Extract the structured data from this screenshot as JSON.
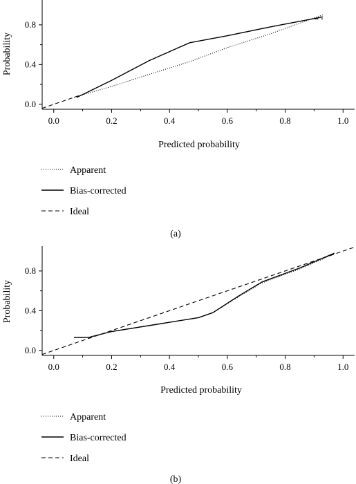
{
  "chart_data": [
    {
      "type": "line",
      "panel_label": "(a)",
      "xlabel": "Predicted probability",
      "ylabel": "Probability",
      "xlim": [
        -0.04,
        1.04
      ],
      "ylim": [
        -0.05,
        1.05
      ],
      "x_ticks": [
        "0.0",
        "0.2",
        "0.4",
        "0.6",
        "0.8",
        "1.0"
      ],
      "y_ticks": [
        "0.0",
        "0.4",
        "0.8"
      ],
      "legend_placement": "below",
      "series": [
        {
          "name": "Apparent",
          "style": "dotted",
          "points": [
            [
              0.07,
              0.07
            ],
            [
              0.2,
              0.18
            ],
            [
              0.35,
              0.32
            ],
            [
              0.47,
              0.43
            ],
            [
              0.6,
              0.57
            ],
            [
              0.75,
              0.71
            ],
            [
              0.9,
              0.87
            ],
            [
              0.93,
              0.9
            ]
          ]
        },
        {
          "name": "Bias-corrected",
          "style": "solid",
          "points": [
            [
              0.08,
              0.07
            ],
            [
              0.2,
              0.24
            ],
            [
              0.33,
              0.44
            ],
            [
              0.47,
              0.62
            ],
            [
              0.6,
              0.69
            ],
            [
              0.75,
              0.78
            ],
            [
              0.93,
              0.88
            ]
          ]
        },
        {
          "name": "Ideal",
          "style": "dashed",
          "points": [
            [
              -0.04,
              -0.04
            ],
            [
              0.09,
              0.09
            ]
          ],
          "points_extra": [
            [
              0.9,
              0.86
            ],
            [
              0.93,
              0.86
            ]
          ]
        }
      ]
    },
    {
      "type": "line",
      "panel_label": "(b)",
      "xlabel": "Predicted probability",
      "ylabel": "Probability",
      "xlim": [
        -0.04,
        1.04
      ],
      "ylim": [
        -0.05,
        1.05
      ],
      "x_ticks": [
        "0.0",
        "0.2",
        "0.4",
        "0.6",
        "0.8",
        "1.0"
      ],
      "y_ticks": [
        "0.0",
        "0.4",
        "0.8"
      ],
      "legend_placement": "below",
      "series": [
        {
          "name": "Apparent",
          "style": "dotted",
          "points": [
            [
              0.07,
              0.13
            ],
            [
              0.12,
              0.13
            ],
            [
              0.2,
              0.19
            ],
            [
              0.35,
              0.26
            ],
            [
              0.5,
              0.33
            ],
            [
              0.55,
              0.38
            ],
            [
              0.65,
              0.56
            ],
            [
              0.72,
              0.68
            ],
            [
              0.85,
              0.82
            ],
            [
              0.97,
              0.97
            ]
          ]
        },
        {
          "name": "Bias-corrected",
          "style": "solid",
          "points": [
            [
              0.07,
              0.13
            ],
            [
              0.12,
              0.13
            ],
            [
              0.2,
              0.19
            ],
            [
              0.35,
              0.26
            ],
            [
              0.5,
              0.33
            ],
            [
              0.55,
              0.38
            ],
            [
              0.64,
              0.55
            ],
            [
              0.72,
              0.69
            ],
            [
              0.85,
              0.83
            ],
            [
              0.97,
              0.98
            ]
          ]
        },
        {
          "name": "Ideal",
          "style": "dashed",
          "points": [
            [
              -0.04,
              -0.04
            ],
            [
              1.04,
              1.04
            ]
          ]
        }
      ]
    }
  ]
}
